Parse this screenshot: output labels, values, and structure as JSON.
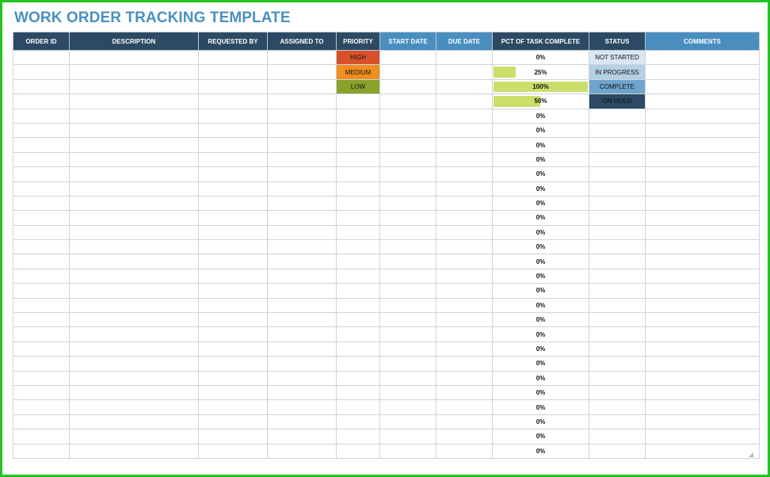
{
  "title": "WORK ORDER TRACKING TEMPLATE",
  "columns": [
    {
      "label": "ORDER ID",
      "style": "dark"
    },
    {
      "label": "DESCRIPTION",
      "style": "dark"
    },
    {
      "label": "REQUESTED BY",
      "style": "dark"
    },
    {
      "label": "ASSIGNED TO",
      "style": "dark"
    },
    {
      "label": "PRIORITY",
      "style": "dark"
    },
    {
      "label": "START DATE",
      "style": "light"
    },
    {
      "label": "DUE DATE",
      "style": "light"
    },
    {
      "label": "PCT OF TASK COMPLETE",
      "style": "dark"
    },
    {
      "label": "STATUS",
      "style": "dark"
    },
    {
      "label": "COMMENTS",
      "style": "light"
    }
  ],
  "priority_options": [
    {
      "label": "HIGH",
      "color": "#d9512b"
    },
    {
      "label": "MEDIUM",
      "color": "#ef8f1d"
    },
    {
      "label": "LOW",
      "color": "#8aa12b"
    }
  ],
  "status_options": [
    {
      "label": "NOT STARTED",
      "color": "#d7e7f3"
    },
    {
      "label": "IN PROGRESS",
      "color": "#b3d0e5"
    },
    {
      "label": "COMPLETE",
      "color": "#6fa4cc"
    },
    {
      "label": "ON HOLD",
      "color": "#2c4a63"
    }
  ],
  "pct_values": [
    0,
    25,
    100,
    50,
    0,
    0,
    0,
    0,
    0,
    0,
    0,
    0,
    0,
    0,
    0,
    0,
    0,
    0,
    0,
    0,
    0,
    0,
    0,
    0,
    0,
    0,
    0,
    0
  ],
  "progress_color": "#cadf6a",
  "header_dark": "#2c4a63",
  "header_light": "#4a8ec0"
}
